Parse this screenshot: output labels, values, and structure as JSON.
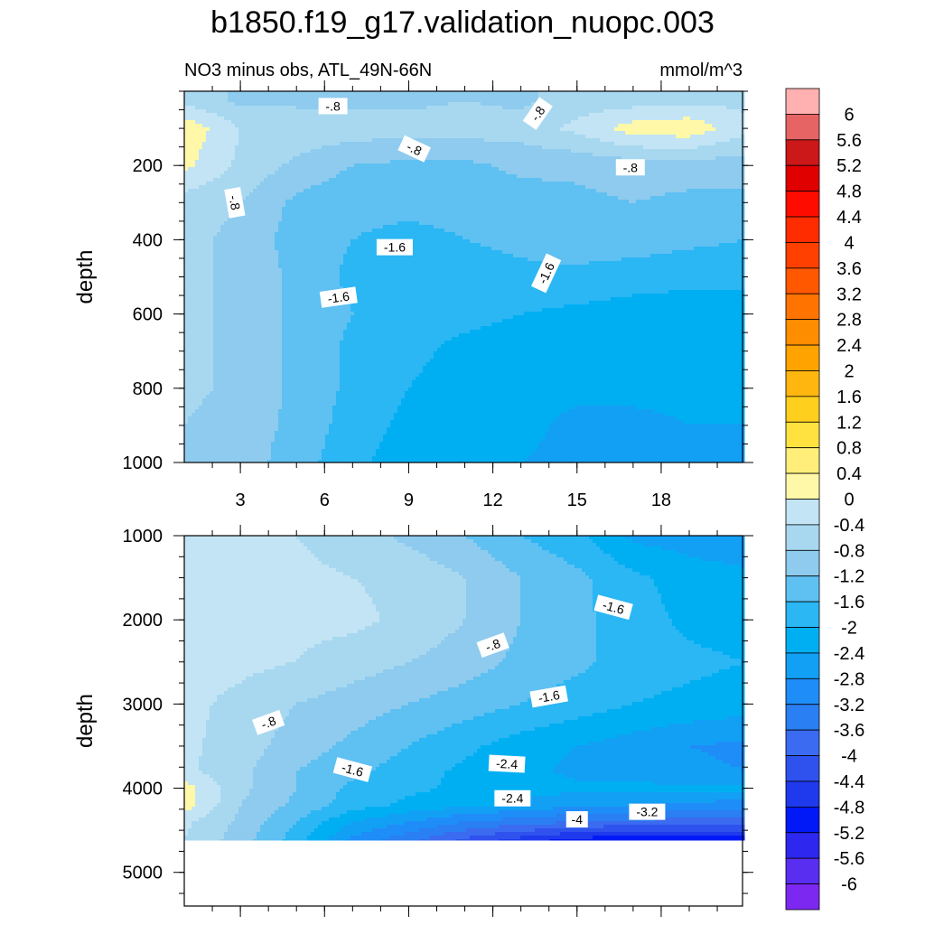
{
  "title": "b1850.f19_g17.validation_nuopc.003",
  "subtitle": "NO3 minus obs, ATL_49N-66N",
  "units": "mmol/m^3",
  "colors": {
    "negative": [
      "#c2e4f4",
      "#a8d8f0",
      "#8ecbee",
      "#5fc0f2",
      "#2bb6f4",
      "#00aff2",
      "#12a0f5",
      "#1e8df8",
      "#2a7ff2",
      "#3a6bf0",
      "#2f52ee",
      "#1f3aec",
      "#0019f6",
      "#2d27f0",
      "#5a2ef0",
      "#7d28f0"
    ],
    "positive": [
      "#fff8a8",
      "#ffef7a",
      "#ffe240",
      "#ffcf1e",
      "#ffb710",
      "#ffa300",
      "#ff8d00",
      "#ff7400",
      "#ff5800",
      "#ff4000",
      "#ff2c00",
      "#ff0c00",
      "#e00000",
      "#cc1818",
      "#e66464",
      "#ffb0b0"
    ]
  },
  "chart_data": [
    {
      "type": "contour",
      "panel": "upper",
      "ylabel": "depth",
      "ylim": [
        1000,
        0
      ],
      "xlim": [
        1,
        20.9
      ],
      "xticks": [
        3,
        6,
        9,
        12,
        15,
        18
      ],
      "yticks": [
        200,
        400,
        600,
        800,
        1000
      ],
      "x": [
        1,
        3,
        5,
        7,
        9,
        11,
        13,
        15,
        17,
        19,
        21
      ],
      "y": [
        25,
        100,
        200,
        300,
        400,
        500,
        600,
        700,
        800,
        900,
        1000
      ],
      "z": [
        [
          -0.5,
          -0.9,
          -0.9,
          -0.9,
          -0.9,
          -0.8,
          -0.9,
          -0.6,
          -0.6,
          -0.5,
          -0.5
        ],
        [
          0.3,
          -0.4,
          -0.5,
          -0.6,
          -0.6,
          -0.6,
          -0.6,
          -0.3,
          0.2,
          0.3,
          -0.3
        ],
        [
          0.1,
          -0.5,
          -0.9,
          -1.2,
          -1.3,
          -1.3,
          -1.1,
          -1.1,
          -1.0,
          -1.0,
          -1.0
        ],
        [
          -0.6,
          -0.8,
          -1.3,
          -1.5,
          -1.5,
          -1.5,
          -1.4,
          -1.3,
          -1.2,
          -1.3,
          -1.3
        ],
        [
          -0.7,
          -0.9,
          -1.4,
          -1.6,
          -1.7,
          -1.6,
          -1.5,
          -1.4,
          -1.4,
          -1.5,
          -1.6
        ],
        [
          -0.7,
          -0.9,
          -1.3,
          -1.7,
          -1.8,
          -1.8,
          -1.7,
          -1.7,
          -1.8,
          -1.9,
          -1.9
        ],
        [
          -0.7,
          -0.9,
          -1.3,
          -1.6,
          -1.9,
          -1.9,
          -2.0,
          -2.1,
          -2.2,
          -2.2,
          -2.2
        ],
        [
          -0.7,
          -0.9,
          -1.3,
          -1.7,
          -1.9,
          -2.1,
          -2.2,
          -2.2,
          -2.3,
          -2.3,
          -2.3
        ],
        [
          -0.7,
          -0.9,
          -1.3,
          -1.7,
          -2.0,
          -2.2,
          -2.3,
          -2.3,
          -2.3,
          -2.3,
          -2.3
        ],
        [
          -0.8,
          -1.0,
          -1.3,
          -1.8,
          -2.1,
          -2.3,
          -2.3,
          -2.5,
          -2.5,
          -2.4,
          -2.4
        ],
        [
          -0.8,
          -1.0,
          -1.4,
          -1.9,
          -2.2,
          -2.3,
          -2.4,
          -2.5,
          -2.6,
          -2.6,
          -2.6
        ]
      ],
      "contour_labels": [
        {
          "text": "-.8",
          "x": 6.3,
          "y": 40,
          "angle": 0
        },
        {
          "text": "-.8",
          "x": 13.6,
          "y": 60,
          "angle": -55
        },
        {
          "text": "-.8",
          "x": 9.2,
          "y": 155,
          "angle": 25
        },
        {
          "text": "-.8",
          "x": 16.9,
          "y": 205,
          "angle": 0
        },
        {
          "text": "-.8",
          "x": 2.8,
          "y": 300,
          "angle": 80
        },
        {
          "text": "-1.6",
          "x": 8.5,
          "y": 420,
          "angle": 0
        },
        {
          "text": "-1.6",
          "x": 13.9,
          "y": 490,
          "angle": -65
        },
        {
          "text": "-1.6",
          "x": 6.5,
          "y": 555,
          "angle": -8
        }
      ]
    },
    {
      "type": "contour",
      "panel": "lower",
      "ylabel": "depth",
      "ylim": [
        5400,
        1000
      ],
      "xlim": [
        1,
        20.9
      ],
      "xticks": [
        3,
        6,
        9,
        12,
        15,
        18
      ],
      "yticks": [
        1000,
        2000,
        3000,
        4000,
        5000
      ],
      "data_bottom": 4620,
      "x": [
        1,
        3,
        5,
        7,
        9,
        11,
        13,
        15,
        17,
        19,
        21
      ],
      "y": [
        1000,
        1500,
        2000,
        2500,
        3000,
        3500,
        3800,
        4000,
        4200,
        4400,
        4620
      ],
      "z": [
        [
          -0.3,
          -0.3,
          -0.4,
          -0.6,
          -0.9,
          -1.2,
          -1.6,
          -1.9,
          -2.5,
          -2.6,
          -2.7
        ],
        [
          -0.2,
          -0.3,
          -0.3,
          -0.4,
          -0.5,
          -0.8,
          -1.2,
          -1.5,
          -1.9,
          -2.2,
          -2.3
        ],
        [
          -0.1,
          -0.3,
          -0.3,
          -0.3,
          -0.5,
          -0.8,
          -1.2,
          -1.5,
          -1.8,
          -2.1,
          -2.2
        ],
        [
          -0.3,
          -0.3,
          -0.4,
          -0.6,
          -0.8,
          -1.0,
          -1.3,
          -1.5,
          -1.8,
          -1.9,
          -2.0
        ],
        [
          -0.3,
          -0.5,
          -0.8,
          -1.0,
          -1.2,
          -1.4,
          -1.6,
          -1.8,
          -2.0,
          -2.1,
          -2.2
        ],
        [
          -0.3,
          -0.6,
          -1.0,
          -1.3,
          -1.6,
          -1.9,
          -2.2,
          -2.4,
          -2.6,
          -2.8,
          -2.9
        ],
        [
          -0.3,
          -0.7,
          -1.2,
          -1.5,
          -1.8,
          -2.1,
          -2.3,
          -2.5,
          -2.6,
          -2.7,
          -2.8
        ],
        [
          0.2,
          -0.7,
          -1.2,
          -1.7,
          -1.9,
          -2.1,
          -2.2,
          -2.3,
          -2.3,
          -2.3,
          -2.3
        ],
        [
          0.2,
          -0.8,
          -1.3,
          -1.8,
          -2.1,
          -2.3,
          -2.5,
          -2.7,
          -2.8,
          -2.9,
          -3.0
        ],
        [
          -0.3,
          -0.9,
          -1.6,
          -2.4,
          -2.8,
          -3.2,
          -3.4,
          -3.6,
          -3.7,
          -3.8,
          -3.8
        ],
        [
          -0.4,
          -1.0,
          -1.8,
          -2.9,
          -3.5,
          -4.1,
          -4.6,
          -5.0,
          -5.1,
          -5.1,
          -5.1
        ]
      ],
      "contour_labels": [
        {
          "text": "-1.6",
          "x": 16.3,
          "y": 1850,
          "angle": 15
        },
        {
          "text": "-.8",
          "x": 12.0,
          "y": 2300,
          "angle": -20
        },
        {
          "text": "-1.6",
          "x": 14.0,
          "y": 2910,
          "angle": -10
        },
        {
          "text": "-.8",
          "x": 4.0,
          "y": 3220,
          "angle": -20
        },
        {
          "text": "-1.6",
          "x": 7.0,
          "y": 3780,
          "angle": 15
        },
        {
          "text": "-2.4",
          "x": 12.5,
          "y": 3710,
          "angle": 3
        },
        {
          "text": "-2.4",
          "x": 12.7,
          "y": 4120,
          "angle": 0
        },
        {
          "text": "-3.2",
          "x": 17.5,
          "y": 4280,
          "angle": 0
        },
        {
          "text": "-4",
          "x": 15.0,
          "y": 4370,
          "angle": 0
        }
      ]
    }
  ],
  "colorbar": {
    "labels": [
      "6",
      "5.6",
      "5.2",
      "4.8",
      "4.4",
      "4",
      "3.6",
      "3.2",
      "2.8",
      "2.4",
      "2",
      "1.6",
      "1.2",
      "0.8",
      "0.4",
      "0",
      "-0.4",
      "-0.8",
      "-1.2",
      "-1.6",
      "-2",
      "-2.4",
      "-2.8",
      "-3.2",
      "-3.6",
      "-4",
      "-4.4",
      "-4.8",
      "-5.2",
      "-5.6",
      "-6"
    ]
  }
}
